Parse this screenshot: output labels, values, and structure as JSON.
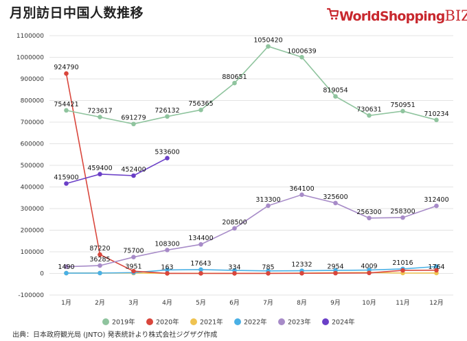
{
  "title": "月別訪日中国人数推移",
  "brand": {
    "name": "WorldShopping",
    "suffix": "BIZ"
  },
  "source": "出典：日本政府観光局 (JNTO) 発表統計より株式会社ジグザグ作成",
  "chart_data": {
    "type": "line",
    "title": "月別訪日中国人数推移",
    "xlabel": "",
    "ylabel": "",
    "ylim": [
      -100000,
      1100000
    ],
    "yticks": [
      -100000,
      0,
      100000,
      200000,
      300000,
      400000,
      500000,
      600000,
      700000,
      800000,
      900000,
      1000000,
      1100000
    ],
    "ytick_labels": [
      "-100000",
      "0",
      "100000",
      "200000",
      "300000",
      "400000",
      "500000",
      "600000",
      "700000",
      "800000",
      "900000",
      "1000000",
      "1100000"
    ],
    "categories": [
      "1月",
      "2月",
      "3月",
      "4月",
      "5月",
      "6月",
      "7月",
      "8月",
      "9月",
      "10月",
      "11月",
      "12月"
    ],
    "grid": true,
    "legend_position": "bottom",
    "series": [
      {
        "name": "2019年",
        "color": "#8fc49e",
        "values": [
          754421,
          723617,
          691279,
          726132,
          756365,
          880651,
          1050420,
          1000639,
          819054,
          730631,
          750951,
          710234
        ],
        "labels": [
          "754421",
          "723617",
          "691279",
          "726132",
          "756365",
          "880651",
          "1050420",
          "1000639",
          "819054",
          "730631",
          "750951",
          "710234"
        ]
      },
      {
        "name": "2020年",
        "color": "#d9463c",
        "values": [
          924790,
          87220,
          10400,
          200,
          100,
          200,
          300,
          600,
          1200,
          2200,
          14000,
          15000
        ],
        "labels": [
          "924790",
          "87220",
          "",
          "",
          "",
          "",
          "",
          "",
          "",
          "",
          "",
          ""
        ]
      },
      {
        "name": "2021年",
        "color": "#efc351",
        "values": [
          1490,
          1810,
          1620,
          163,
          680,
          334,
          785,
          1640,
          2954,
          4009,
          1660,
          1764
        ],
        "labels": [
          "1490",
          "",
          "",
          "163",
          "",
          "334",
          "785",
          "",
          "2954",
          "4009",
          "",
          "1764"
        ]
      },
      {
        "name": "2022年",
        "color": "#4ab0e5",
        "values": [
          1370,
          1570,
          3951,
          16270,
          17643,
          13950,
          11680,
          12332,
          14080,
          15610,
          21016,
          31710
        ],
        "labels": [
          "",
          "",
          "3951",
          "",
          "17643",
          "",
          "",
          "12332",
          "",
          "",
          "21016",
          ""
        ]
      },
      {
        "name": "2023年",
        "color": "#a78bc8",
        "values": [
          31200,
          36285,
          75700,
          108300,
          134400,
          208500,
          313300,
          364100,
          325600,
          256300,
          258300,
          312400
        ],
        "labels": [
          "",
          "36285",
          "75700",
          "108300",
          "134400",
          "208500",
          "313300",
          "364100",
          "325600",
          "256300",
          "258300",
          "312400"
        ]
      },
      {
        "name": "2024年",
        "color": "#6a3fc7",
        "values": [
          415900,
          459400,
          452400,
          533600,
          null,
          null,
          null,
          null,
          null,
          null,
          null,
          null
        ],
        "labels": [
          "415900",
          "459400",
          "452400",
          "533600",
          "",
          "",
          "",
          "",
          "",
          "",
          "",
          ""
        ]
      }
    ]
  }
}
